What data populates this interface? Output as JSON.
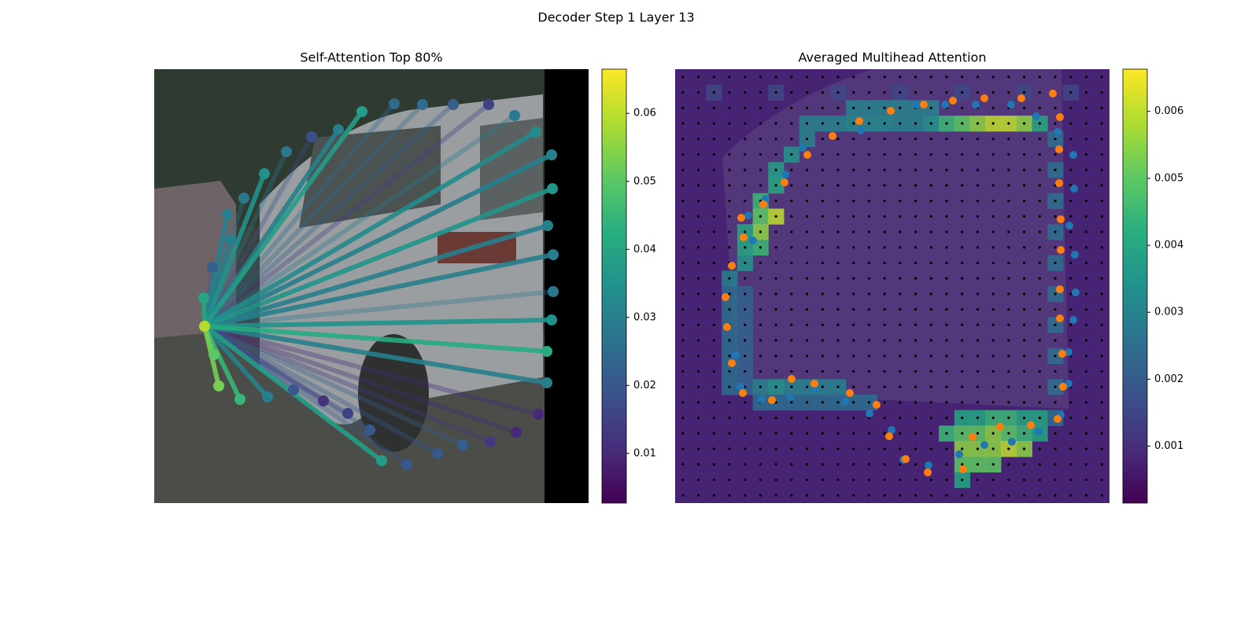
{
  "suptitle": "Decoder Step 1 Layer 13",
  "chart_data": [
    {
      "type": "attention-lines",
      "title": "Self-Attention Top 80%",
      "query": {
        "x": 64,
        "y": 327,
        "value": 0.059
      },
      "points": {
        "x": [
          63,
          74,
          97,
          93,
          114,
          140,
          168,
          200,
          234,
          264,
          305,
          341,
          380,
          425,
          458,
          485,
          505,
          506,
          500,
          507,
          507,
          505,
          499,
          499,
          488,
          460,
          427,
          392,
          360,
          321,
          289,
          274,
          246,
          215,
          177,
          144,
          109,
          82,
          76
        ],
        "y": [
          291,
          252,
          217,
          185,
          164,
          133,
          105,
          86,
          77,
          54,
          44,
          45,
          45,
          45,
          59,
          80,
          109,
          152,
          199,
          236,
          283,
          319,
          359,
          399,
          439,
          462,
          474,
          478,
          489,
          503,
          498,
          459,
          438,
          422,
          408,
          417,
          420,
          403,
          363
        ],
        "values": [
          0.04,
          0.022,
          0.03,
          0.03,
          0.028,
          0.035,
          0.028,
          0.018,
          0.03,
          0.038,
          0.025,
          0.025,
          0.022,
          0.015,
          0.028,
          0.033,
          0.03,
          0.036,
          0.03,
          0.03,
          0.028,
          0.035,
          0.042,
          0.03,
          0.01,
          0.01,
          0.013,
          0.022,
          0.02,
          0.02,
          0.038,
          0.02,
          0.015,
          0.012,
          0.02,
          0.03,
          0.045,
          0.053,
          0.05
        ]
      },
      "clim": [
        0.0027,
        0.0665
      ],
      "colorbar_ticks": [
        0.01,
        0.02,
        0.03,
        0.04,
        0.05,
        0.06
      ]
    },
    {
      "type": "heatmap",
      "title": "Averaged Multihead Attention",
      "grid_size": 28,
      "background_value": 0.0008,
      "cells": [
        [
          2,
          1,
          0.0015
        ],
        [
          6,
          1,
          0.0015
        ],
        [
          10,
          1,
          0.0015
        ],
        [
          14,
          1,
          0.0015
        ],
        [
          18,
          1,
          0.0015
        ],
        [
          22,
          1,
          0.0015
        ],
        [
          25,
          1,
          0.0015
        ],
        [
          11,
          2,
          0.003
        ],
        [
          12,
          2,
          0.003
        ],
        [
          13,
          2,
          0.003
        ],
        [
          14,
          2,
          0.003
        ],
        [
          15,
          2,
          0.003
        ],
        [
          16,
          2,
          0.003
        ],
        [
          8,
          3,
          0.003
        ],
        [
          9,
          3,
          0.003
        ],
        [
          10,
          3,
          0.003
        ],
        [
          11,
          3,
          0.0032
        ],
        [
          12,
          3,
          0.0032
        ],
        [
          13,
          3,
          0.0032
        ],
        [
          14,
          3,
          0.003
        ],
        [
          15,
          3,
          0.003
        ],
        [
          16,
          3,
          0.0035
        ],
        [
          17,
          3,
          0.0045
        ],
        [
          18,
          3,
          0.005
        ],
        [
          19,
          3,
          0.0055
        ],
        [
          20,
          3,
          0.006
        ],
        [
          21,
          3,
          0.006
        ],
        [
          22,
          3,
          0.0055
        ],
        [
          23,
          3,
          0.004
        ],
        [
          8,
          4,
          0.003
        ],
        [
          7,
          5,
          0.0035
        ],
        [
          6,
          6,
          0.0038
        ],
        [
          6,
          7,
          0.004
        ],
        [
          5,
          8,
          0.0045
        ],
        [
          5,
          9,
          0.005
        ],
        [
          6,
          9,
          0.006
        ],
        [
          5,
          10,
          0.0055
        ],
        [
          4,
          10,
          0.004
        ],
        [
          5,
          11,
          0.0045
        ],
        [
          4,
          11,
          0.004
        ],
        [
          4,
          12,
          0.0035
        ],
        [
          3,
          13,
          0.003
        ],
        [
          3,
          14,
          0.0025
        ],
        [
          3,
          15,
          0.0025
        ],
        [
          3,
          16,
          0.0025
        ],
        [
          3,
          17,
          0.0025
        ],
        [
          3,
          18,
          0.0025
        ],
        [
          3,
          19,
          0.0025
        ],
        [
          3,
          20,
          0.0025
        ],
        [
          4,
          14,
          0.0022
        ],
        [
          4,
          15,
          0.0022
        ],
        [
          4,
          16,
          0.0022
        ],
        [
          4,
          17,
          0.0022
        ],
        [
          4,
          18,
          0.0022
        ],
        [
          4,
          19,
          0.0022
        ],
        [
          4,
          20,
          0.0022
        ],
        [
          5,
          20,
          0.003
        ],
        [
          6,
          20,
          0.0035
        ],
        [
          7,
          20,
          0.003
        ],
        [
          8,
          20,
          0.003
        ],
        [
          9,
          20,
          0.003
        ],
        [
          10,
          20,
          0.003
        ],
        [
          5,
          21,
          0.0025
        ],
        [
          6,
          21,
          0.0025
        ],
        [
          7,
          21,
          0.0025
        ],
        [
          8,
          21,
          0.0025
        ],
        [
          9,
          21,
          0.0025
        ],
        [
          10,
          21,
          0.0025
        ],
        [
          11,
          21,
          0.0025
        ],
        [
          12,
          21,
          0.0025
        ],
        [
          18,
          22,
          0.004
        ],
        [
          19,
          22,
          0.004
        ],
        [
          20,
          22,
          0.0045
        ],
        [
          21,
          22,
          0.0045
        ],
        [
          22,
          22,
          0.004
        ],
        [
          23,
          22,
          0.004
        ],
        [
          17,
          23,
          0.0045
        ],
        [
          18,
          23,
          0.005
        ],
        [
          19,
          23,
          0.005
        ],
        [
          20,
          23,
          0.0055
        ],
        [
          21,
          23,
          0.005
        ],
        [
          22,
          23,
          0.0045
        ],
        [
          23,
          23,
          0.004
        ],
        [
          18,
          24,
          0.0055
        ],
        [
          19,
          24,
          0.0055
        ],
        [
          20,
          24,
          0.0055
        ],
        [
          21,
          24,
          0.006
        ],
        [
          22,
          24,
          0.0055
        ],
        [
          18,
          25,
          0.005
        ],
        [
          19,
          25,
          0.005
        ],
        [
          20,
          25,
          0.005
        ],
        [
          18,
          26,
          0.004
        ],
        [
          24,
          4,
          0.0025
        ],
        [
          24,
          6,
          0.0025
        ],
        [
          24,
          8,
          0.0025
        ],
        [
          24,
          10,
          0.0025
        ],
        [
          24,
          12,
          0.0025
        ],
        [
          24,
          14,
          0.0025
        ],
        [
          24,
          16,
          0.0025
        ],
        [
          24,
          18,
          0.0025
        ],
        [
          24,
          20,
          0.0025
        ],
        [
          24,
          22,
          0.0025
        ]
      ],
      "orange_points": {
        "color": "#ff7f0e",
        "x": [
          274,
          316,
          353,
          393,
          440,
          480,
          489,
          488,
          488,
          490,
          490,
          489,
          489,
          492,
          493,
          486,
          452,
          413,
          378,
          366,
          321,
          293,
          272,
          256,
          222,
          177,
          148,
          123,
          86,
          72,
          66,
          64,
          72,
          87,
          84,
          112,
          139,
          168,
          200,
          234
        ],
        "y": [
          53,
          45,
          40,
          37,
          37,
          31,
          61,
          102,
          145,
          191,
          230,
          280,
          317,
          362,
          404,
          445,
          453,
          455,
          468,
          509,
          513,
          496,
          467,
          427,
          412,
          400,
          394,
          421,
          412,
          374,
          328,
          290,
          250,
          214,
          189,
          172,
          144,
          109,
          85,
          66
        ]
      },
      "blue_points": {
        "color": "#1f77b4",
        "x": [
          306,
          343,
          382,
          427,
          459,
          486,
          506,
          507,
          501,
          508,
          509,
          506,
          500,
          500,
          490,
          462,
          428,
          393,
          361,
          322,
          290,
          275,
          247,
          216,
          178,
          146,
          110,
          83,
          77,
          99,
          93,
          115,
          140,
          162,
          236
        ],
        "y": [
          45,
          45,
          45,
          45,
          60,
          80,
          109,
          152,
          199,
          236,
          284,
          319,
          360,
          400,
          440,
          461,
          474,
          478,
          490,
          504,
          497,
          459,
          438,
          423,
          407,
          417,
          420,
          404,
          364,
          218,
          186,
          165,
          134,
          100,
          78
        ]
      },
      "clim": [
        0.00015,
        0.00663
      ],
      "colorbar_ticks": [
        0.001,
        0.002,
        0.003,
        0.004,
        0.005,
        0.006
      ]
    }
  ]
}
